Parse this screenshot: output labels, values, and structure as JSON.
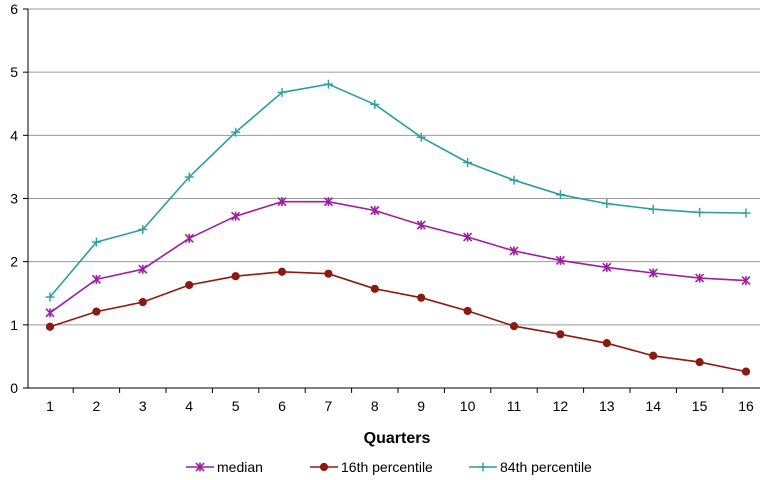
{
  "chart_data": {
    "type": "line",
    "title": "",
    "xlabel": "Quarters",
    "ylabel": "",
    "x": [
      1,
      2,
      3,
      4,
      5,
      6,
      7,
      8,
      9,
      10,
      11,
      12,
      13,
      14,
      15,
      16
    ],
    "xlim": [
      1,
      16
    ],
    "ylim": [
      0,
      6
    ],
    "yticks": [
      0,
      1,
      2,
      3,
      4,
      5,
      6
    ],
    "grid": "horizontal",
    "legend": "bottom",
    "series": [
      {
        "name": "median",
        "color": "#9b1fa0",
        "marker": "asterisk",
        "values": [
          1.19,
          1.72,
          1.88,
          2.37,
          2.72,
          2.95,
          2.95,
          2.81,
          2.58,
          2.39,
          2.17,
          2.02,
          1.91,
          1.82,
          1.74,
          1.7
        ]
      },
      {
        "name": "16th percentile",
        "color": "#8b1a10",
        "marker": "circle",
        "values": [
          0.97,
          1.21,
          1.36,
          1.63,
          1.77,
          1.84,
          1.81,
          1.57,
          1.43,
          1.22,
          0.98,
          0.85,
          0.71,
          0.51,
          0.41,
          0.26
        ]
      },
      {
        "name": "84th percentile",
        "color": "#2a9ea0",
        "marker": "plus",
        "values": [
          1.44,
          2.31,
          2.51,
          3.34,
          4.05,
          4.68,
          4.81,
          4.49,
          3.97,
          3.57,
          3.29,
          3.06,
          2.92,
          2.83,
          2.78,
          2.77
        ]
      }
    ]
  }
}
